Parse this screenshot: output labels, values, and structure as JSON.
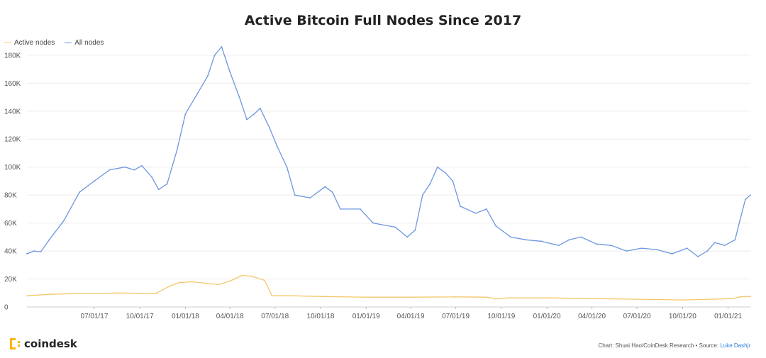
{
  "chart_data": {
    "type": "line",
    "title": "Active Bitcoin Full Nodes Since 2017",
    "xlabel": "",
    "ylabel": "",
    "ylim": [
      0,
      185000
    ],
    "xlim": [
      "2017-02-15",
      "2021-02-15"
    ],
    "y_ticks": [
      "0",
      "20K",
      "40K",
      "60K",
      "80K",
      "100K",
      "120K",
      "140K",
      "160K",
      "180K"
    ],
    "y_tick_values": [
      0,
      20000,
      40000,
      60000,
      80000,
      100000,
      120000,
      140000,
      160000,
      180000
    ],
    "x_ticks": [
      "07/01/17",
      "10/01/17",
      "01/01/18",
      "04/01/18",
      "07/01/18",
      "10/01/18",
      "01/01/19",
      "04/01/19",
      "07/01/19",
      "10/01/19",
      "01/01/20",
      "04/01/20",
      "07/01/20",
      "10/01/20",
      "01/01/21"
    ],
    "x_tick_dates": [
      "2017-07-01",
      "2017-10-01",
      "2018-01-01",
      "2018-04-01",
      "2018-07-01",
      "2018-10-01",
      "2019-01-01",
      "2019-04-01",
      "2019-07-01",
      "2019-10-01",
      "2020-01-01",
      "2020-04-01",
      "2020-07-01",
      "2020-10-01",
      "2021-01-01"
    ],
    "grid": true,
    "legend_position": "top-left",
    "series": [
      {
        "name": "Active nodes",
        "color": "#f5c76b",
        "points": [
          [
            "2017-02-15",
            8000
          ],
          [
            "2017-04-01",
            9000
          ],
          [
            "2017-05-15",
            9500
          ],
          [
            "2017-07-01",
            9600
          ],
          [
            "2017-08-15",
            10000
          ],
          [
            "2017-10-01",
            9800
          ],
          [
            "2017-11-01",
            9500
          ],
          [
            "2017-12-01",
            15000
          ],
          [
            "2017-12-20",
            17500
          ],
          [
            "2018-01-15",
            18000
          ],
          [
            "2018-02-10",
            17000
          ],
          [
            "2018-03-10",
            16000
          ],
          [
            "2018-04-01",
            18500
          ],
          [
            "2018-04-25",
            22500
          ],
          [
            "2018-05-15",
            22000
          ],
          [
            "2018-06-10",
            19000
          ],
          [
            "2018-06-25",
            8000
          ],
          [
            "2018-08-01",
            8000
          ],
          [
            "2018-10-01",
            7500
          ],
          [
            "2019-01-01",
            7000
          ],
          [
            "2019-04-01",
            7000
          ],
          [
            "2019-07-01",
            7200
          ],
          [
            "2019-09-01",
            7000
          ],
          [
            "2019-09-20",
            5800
          ],
          [
            "2019-10-15",
            6500
          ],
          [
            "2020-01-01",
            6500
          ],
          [
            "2020-04-01",
            6000
          ],
          [
            "2020-07-01",
            5500
          ],
          [
            "2020-10-01",
            5000
          ],
          [
            "2020-12-01",
            5500
          ],
          [
            "2021-01-10",
            6000
          ],
          [
            "2021-01-25",
            7200
          ],
          [
            "2021-02-15",
            7500
          ]
        ]
      },
      {
        "name": "All nodes",
        "color": "#6d96e0",
        "points": [
          [
            "2017-02-15",
            38000
          ],
          [
            "2017-03-01",
            40000
          ],
          [
            "2017-03-15",
            39500
          ],
          [
            "2017-04-01",
            48000
          ],
          [
            "2017-05-01",
            62000
          ],
          [
            "2017-06-01",
            82000
          ],
          [
            "2017-07-01",
            90000
          ],
          [
            "2017-08-01",
            98000
          ],
          [
            "2017-09-01",
            100000
          ],
          [
            "2017-09-20",
            98000
          ],
          [
            "2017-10-05",
            101000
          ],
          [
            "2017-10-25",
            93000
          ],
          [
            "2017-11-08",
            84000
          ],
          [
            "2017-11-25",
            88000
          ],
          [
            "2017-12-15",
            112000
          ],
          [
            "2018-01-01",
            138000
          ],
          [
            "2018-02-15",
            165000
          ],
          [
            "2018-03-01",
            180000
          ],
          [
            "2018-03-15",
            186000
          ],
          [
            "2018-04-01",
            168000
          ],
          [
            "2018-04-20",
            150000
          ],
          [
            "2018-05-05",
            134000
          ],
          [
            "2018-05-20",
            138000
          ],
          [
            "2018-06-01",
            142000
          ],
          [
            "2018-06-20",
            128000
          ],
          [
            "2018-07-05",
            115000
          ],
          [
            "2018-07-25",
            100000
          ],
          [
            "2018-08-10",
            80000
          ],
          [
            "2018-09-10",
            78000
          ],
          [
            "2018-10-10",
            86000
          ],
          [
            "2018-10-25",
            82000
          ],
          [
            "2018-11-10",
            70000
          ],
          [
            "2018-12-20",
            70000
          ],
          [
            "2019-01-15",
            60000
          ],
          [
            "2019-03-01",
            57000
          ],
          [
            "2019-03-25",
            50000
          ],
          [
            "2019-04-10",
            55000
          ],
          [
            "2019-04-25",
            80000
          ],
          [
            "2019-05-10",
            88000
          ],
          [
            "2019-05-25",
            100000
          ],
          [
            "2019-06-10",
            96000
          ],
          [
            "2019-06-25",
            90000
          ],
          [
            "2019-07-10",
            72000
          ],
          [
            "2019-08-10",
            67000
          ],
          [
            "2019-09-01",
            70000
          ],
          [
            "2019-09-20",
            58000
          ],
          [
            "2019-10-20",
            50000
          ],
          [
            "2019-11-20",
            48000
          ],
          [
            "2019-12-20",
            47000
          ],
          [
            "2020-01-25",
            44000
          ],
          [
            "2020-02-15",
            48000
          ],
          [
            "2020-03-10",
            50000
          ],
          [
            "2020-04-10",
            45000
          ],
          [
            "2020-05-10",
            44000
          ],
          [
            "2020-06-10",
            40000
          ],
          [
            "2020-07-10",
            42000
          ],
          [
            "2020-08-10",
            41000
          ],
          [
            "2020-09-10",
            38000
          ],
          [
            "2020-10-10",
            42000
          ],
          [
            "2020-11-01",
            36000
          ],
          [
            "2020-11-20",
            40000
          ],
          [
            "2020-12-05",
            46000
          ],
          [
            "2020-12-25",
            44000
          ],
          [
            "2021-01-15",
            48000
          ],
          [
            "2021-01-25",
            62000
          ],
          [
            "2021-02-05",
            77000
          ],
          [
            "2021-02-15",
            80000
          ]
        ]
      }
    ]
  },
  "brand": {
    "name": "coindesk",
    "accent": "#f7b600"
  },
  "credit": {
    "text": "Chart: Shuai Hao/CoinDesk Research • Source: ",
    "link": "Luke Dashjr"
  }
}
